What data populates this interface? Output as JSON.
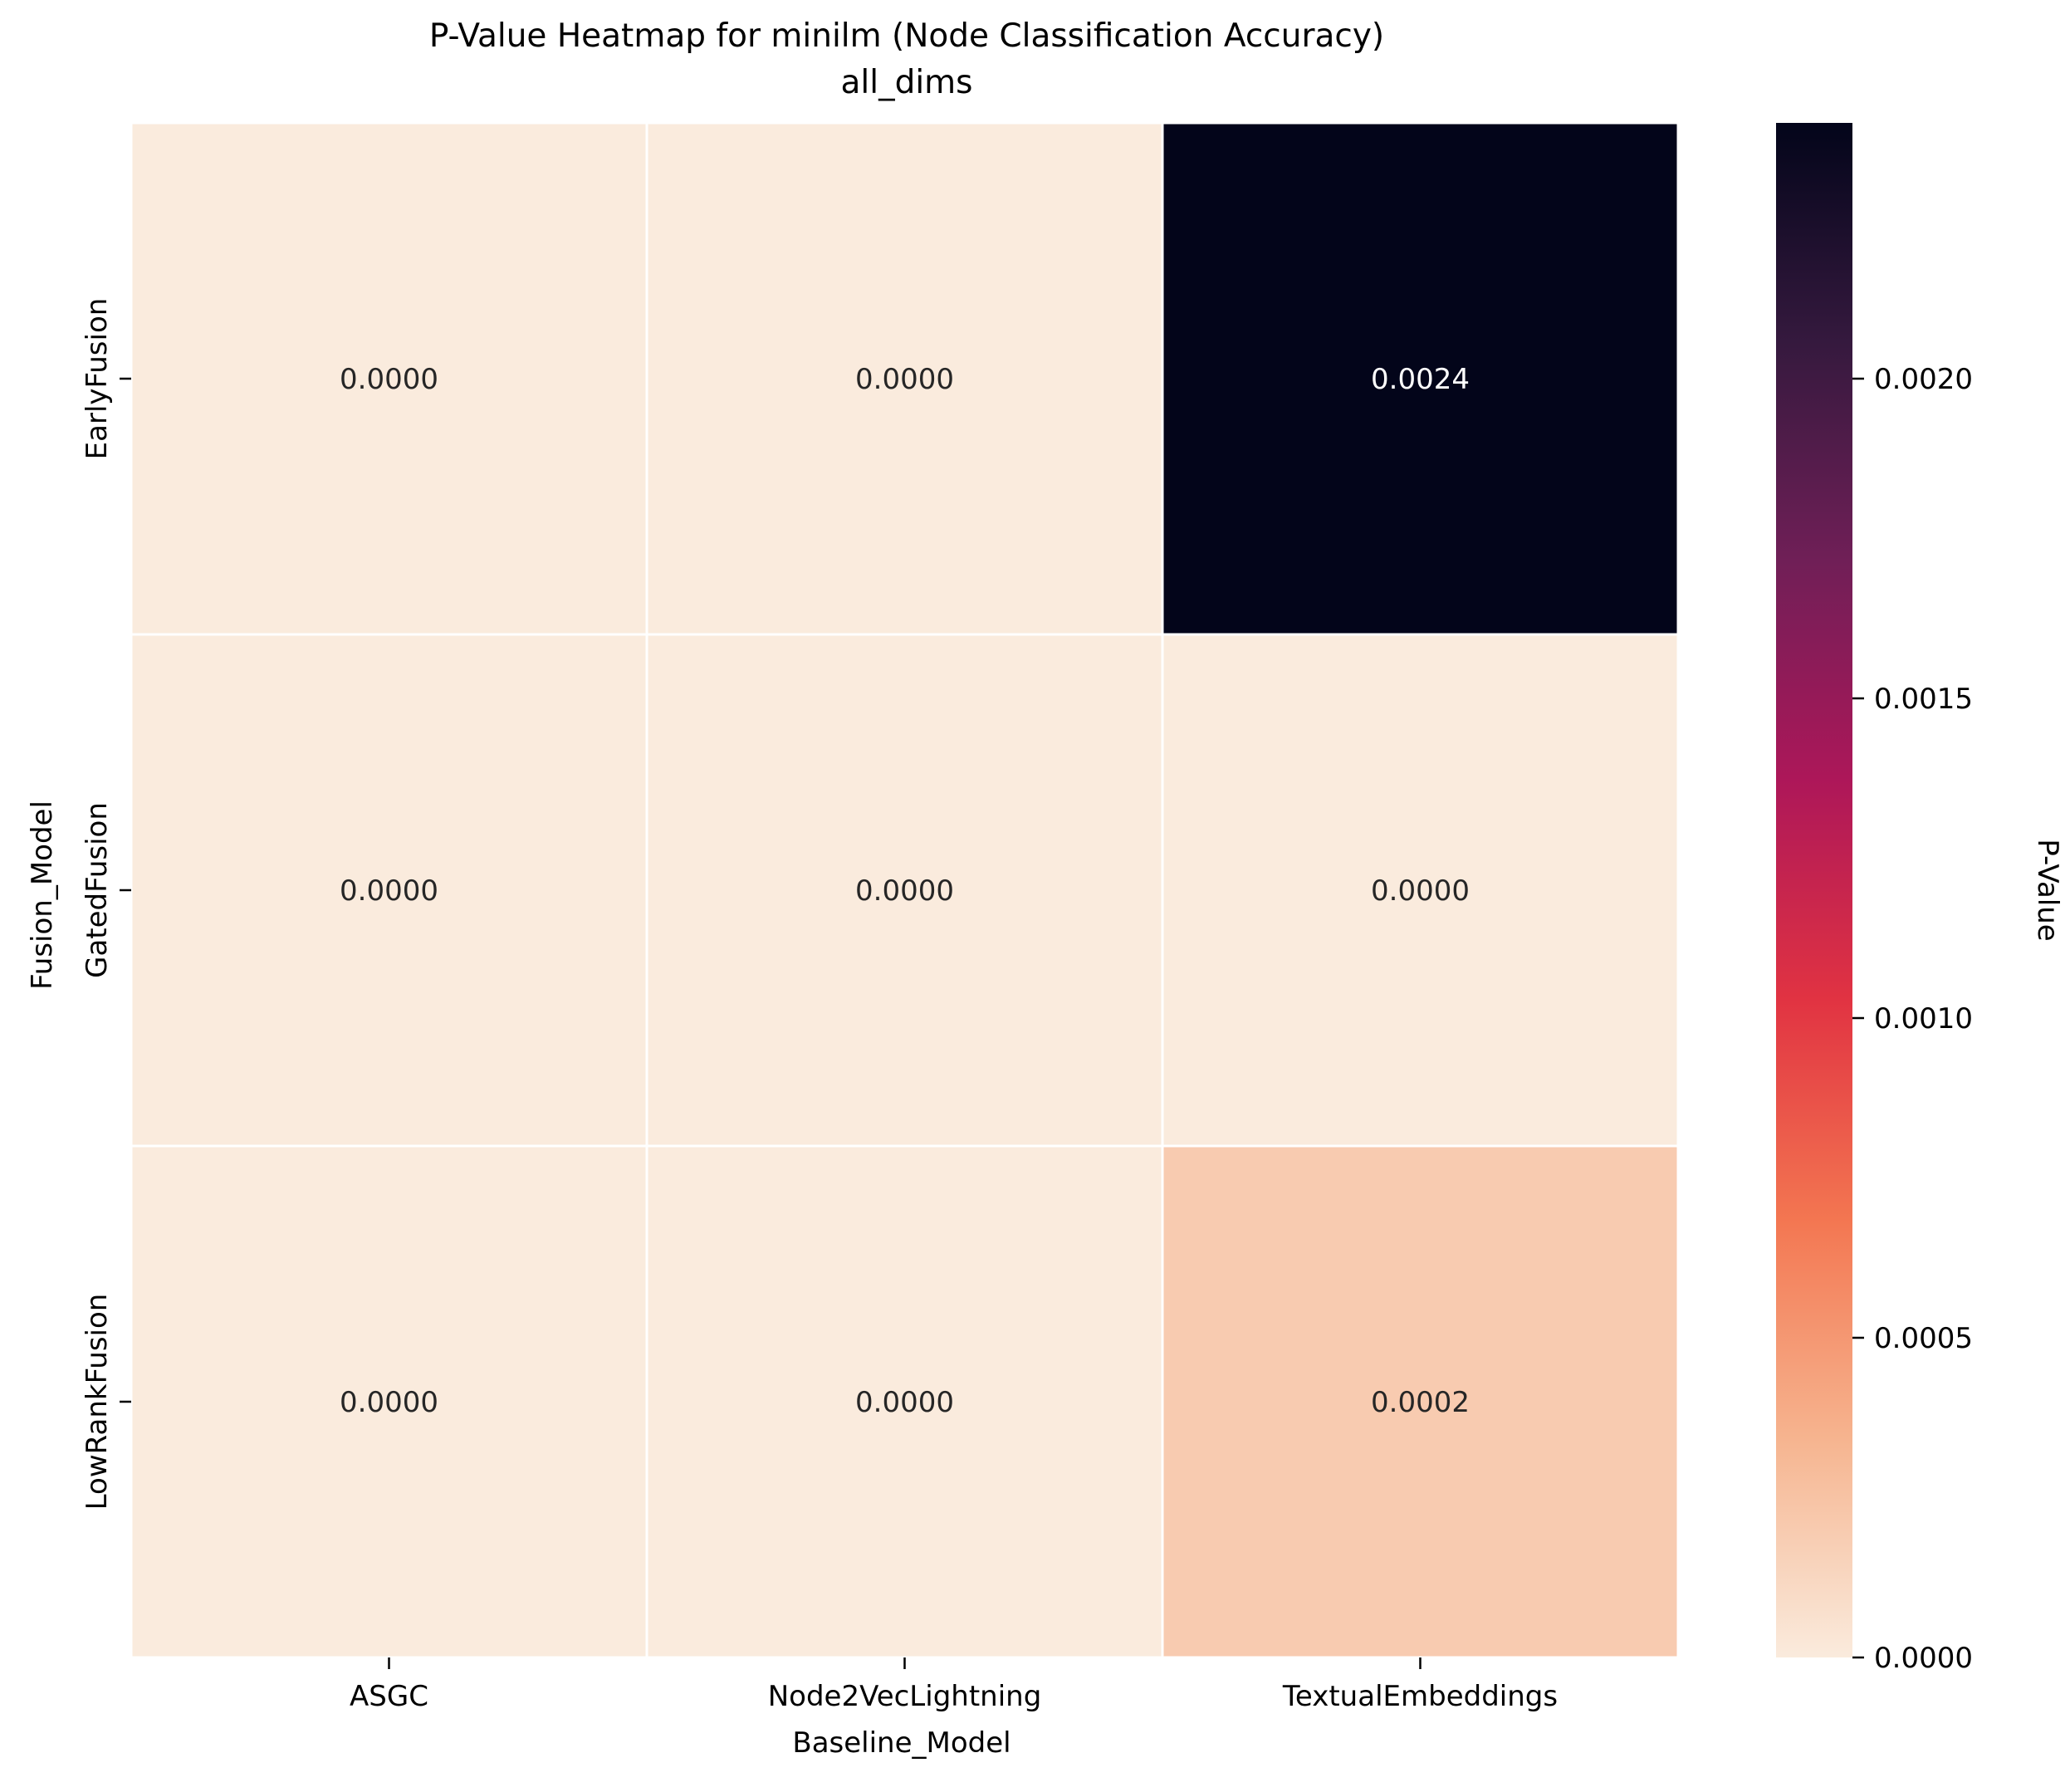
{
  "chart_data": {
    "type": "heatmap",
    "title": "P-Value Heatmap for minilm (Node Classification Accuracy)",
    "subtitle": "all_dims",
    "xlabel": "Baseline_Model",
    "ylabel": "Fusion_Model",
    "x_categories": [
      "ASGC",
      "Node2VecLightning",
      "TextualEmbeddings"
    ],
    "y_categories": [
      "EarlyFusion",
      "GatedFusion",
      "LowRankFusion"
    ],
    "values": [
      [
        0.0,
        0.0,
        0.0024
      ],
      [
        0.0,
        0.0,
        0.0
      ],
      [
        0.0,
        0.0,
        0.0002
      ]
    ],
    "cell_labels": [
      [
        "0.0000",
        "0.0000",
        "0.0024"
      ],
      [
        "0.0000",
        "0.0000",
        "0.0000"
      ],
      [
        "0.0000",
        "0.0000",
        "0.0002"
      ]
    ],
    "colorbar": {
      "label": "P-Value",
      "range": [
        0.0,
        0.0024
      ],
      "ticks": [
        0.0,
        0.0005,
        0.001,
        0.0015,
        0.002
      ],
      "tick_labels": [
        "0.0000",
        "0.0005",
        "0.0010",
        "0.0015",
        "0.0020"
      ],
      "colormap": "rocket_r",
      "color_stops": [
        "#faebdd",
        "#f6b48f",
        "#f37651",
        "#e13342",
        "#ad1759",
        "#701f57",
        "#35193e",
        "#03051a"
      ]
    },
    "grid": false,
    "cell_border_color": "#ffffff"
  }
}
